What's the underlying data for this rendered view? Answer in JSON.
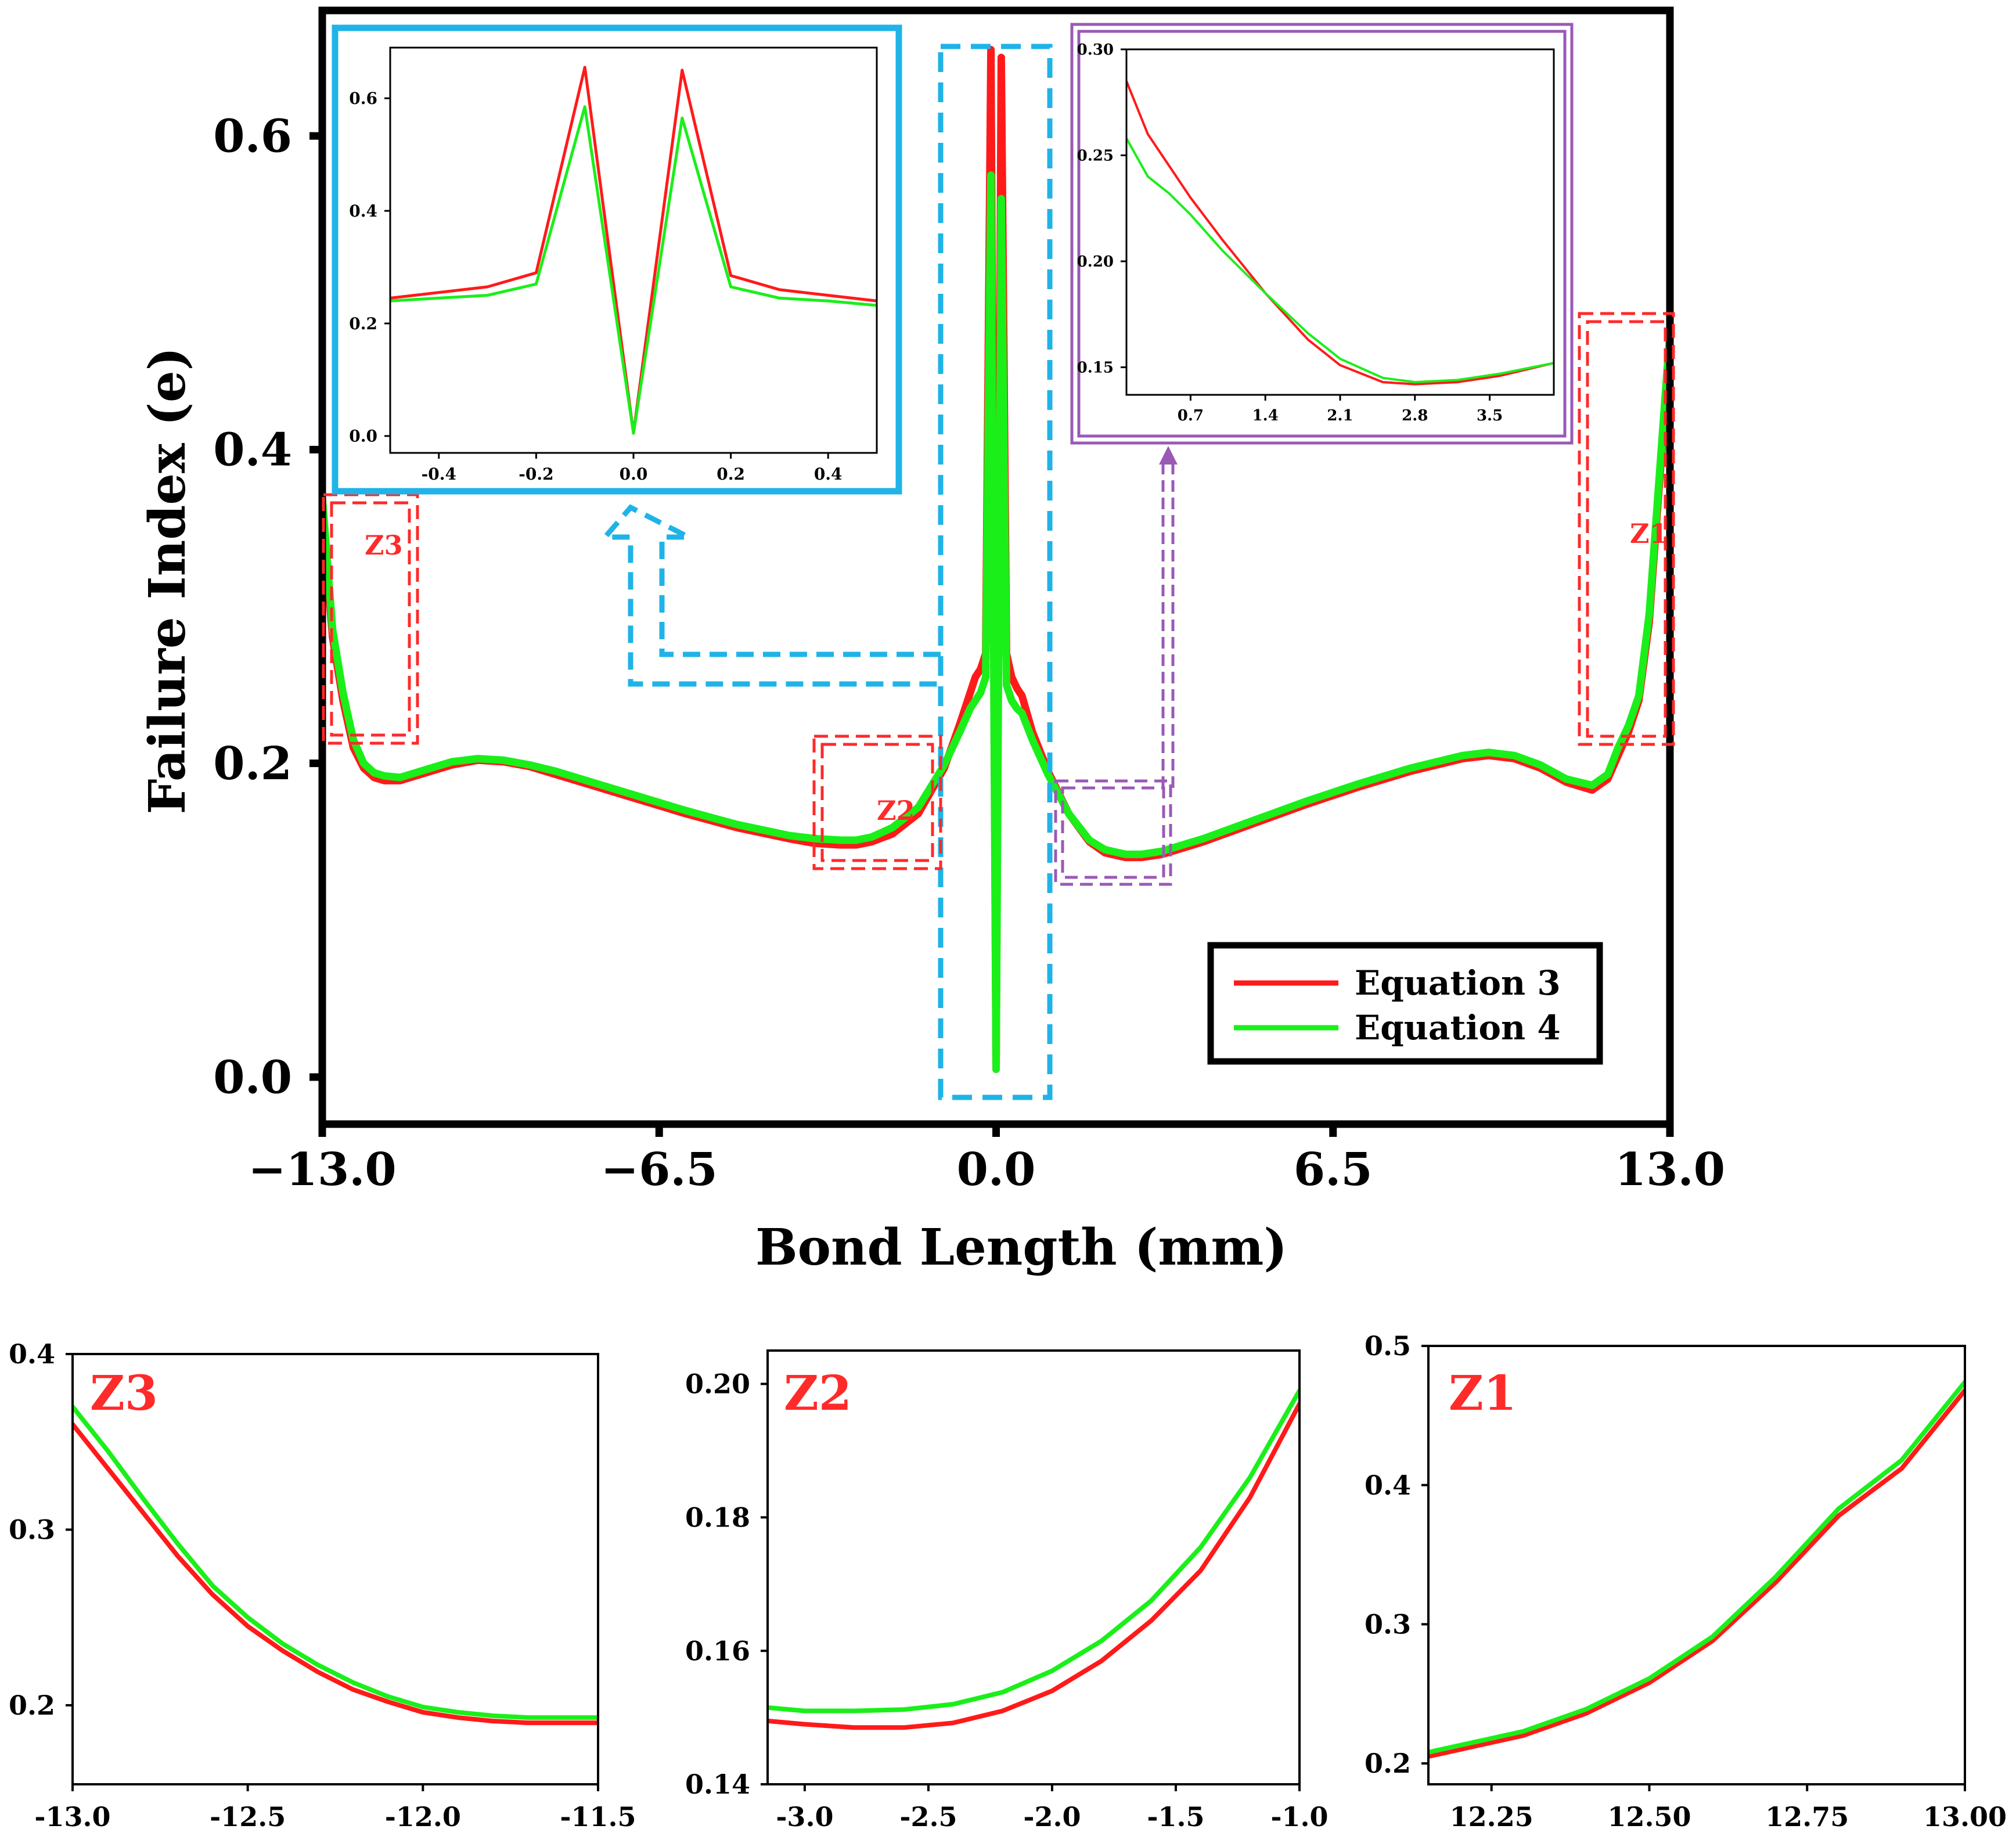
{
  "colors": {
    "equation3": "#ff1a1a",
    "equation4": "#1aef1a",
    "zoom_blue": "#1fb3e8",
    "zoom_purple": "#9b59b6",
    "zone_red": "#ff2a2a",
    "axis": "#000000"
  },
  "chart_data": [
    {
      "id": "main",
      "type": "line",
      "xlabel": "Bond Length (mm)",
      "ylabel": "Failure Index (e)",
      "xlim": [
        -13,
        13
      ],
      "ylim": [
        -0.03,
        0.68
      ],
      "xticks": [
        -13.0,
        -6.5,
        0.0,
        6.5,
        13.0
      ],
      "xtick_labels": [
        "−13.0",
        "−6.5",
        "0.0",
        "6.5",
        "13.0"
      ],
      "yticks": [
        0.0,
        0.2,
        0.4,
        0.6
      ],
      "ytick_labels": [
        "0.0",
        "0.2",
        "0.4",
        "0.6"
      ],
      "legend": {
        "placement": "bottom-right",
        "entries": [
          "Equation 3",
          "Equation 4"
        ]
      },
      "zone_labels": [
        "Z1",
        "Z2",
        "Z3"
      ],
      "series": [
        {
          "name": "Equation 3",
          "x": [
            -13.0,
            -12.8,
            -12.6,
            -12.4,
            -12.2,
            -12.0,
            -11.8,
            -11.5,
            -11.0,
            -10.5,
            -10.0,
            -9.5,
            -9.0,
            -8.5,
            -8.0,
            -7.0,
            -6.0,
            -5.0,
            -4.0,
            -3.5,
            -3.0,
            -2.7,
            -2.4,
            -2.0,
            -1.5,
            -1.0,
            -0.7,
            -0.5,
            -0.4,
            -0.3,
            -0.2,
            -0.1,
            0.0,
            0.1,
            0.2,
            0.3,
            0.4,
            0.5,
            0.7,
            1.0,
            1.4,
            1.8,
            2.1,
            2.5,
            2.8,
            3.2,
            3.6,
            4.0,
            5.0,
            6.0,
            7.0,
            8.0,
            9.0,
            9.5,
            10.0,
            10.5,
            11.0,
            11.5,
            11.8,
            12.0,
            12.2,
            12.4,
            12.6,
            12.8,
            13.0
          ],
          "y": [
            0.36,
            0.28,
            0.24,
            0.21,
            0.197,
            0.191,
            0.189,
            0.189,
            0.194,
            0.199,
            0.202,
            0.201,
            0.198,
            0.193,
            0.188,
            0.178,
            0.168,
            0.159,
            0.152,
            0.149,
            0.148,
            0.148,
            0.15,
            0.155,
            0.168,
            0.197,
            0.225,
            0.245,
            0.255,
            0.26,
            0.27,
            0.655,
            0.005,
            0.65,
            0.27,
            0.255,
            0.248,
            0.243,
            0.22,
            0.195,
            0.168,
            0.15,
            0.143,
            0.14,
            0.14,
            0.142,
            0.146,
            0.15,
            0.162,
            0.174,
            0.185,
            0.195,
            0.203,
            0.205,
            0.203,
            0.197,
            0.188,
            0.183,
            0.19,
            0.205,
            0.22,
            0.24,
            0.29,
            0.38,
            0.465
          ]
        },
        {
          "name": "Equation 4",
          "x": [
            -13.0,
            -12.8,
            -12.6,
            -12.4,
            -12.2,
            -12.0,
            -11.8,
            -11.5,
            -11.0,
            -10.5,
            -10.0,
            -9.5,
            -9.0,
            -8.5,
            -8.0,
            -7.0,
            -6.0,
            -5.0,
            -4.0,
            -3.5,
            -3.0,
            -2.7,
            -2.4,
            -2.0,
            -1.5,
            -1.0,
            -0.7,
            -0.5,
            -0.4,
            -0.3,
            -0.2,
            -0.1,
            0.0,
            0.1,
            0.2,
            0.3,
            0.4,
            0.5,
            0.7,
            1.0,
            1.4,
            1.8,
            2.1,
            2.5,
            2.8,
            3.2,
            3.6,
            4.0,
            5.0,
            6.0,
            7.0,
            8.0,
            9.0,
            9.5,
            10.0,
            10.5,
            11.0,
            11.5,
            11.8,
            12.0,
            12.2,
            12.4,
            12.6,
            12.8,
            13.0
          ],
          "y": [
            0.37,
            0.285,
            0.245,
            0.215,
            0.2,
            0.194,
            0.192,
            0.191,
            0.196,
            0.201,
            0.203,
            0.202,
            0.199,
            0.195,
            0.19,
            0.18,
            0.17,
            0.161,
            0.154,
            0.152,
            0.151,
            0.151,
            0.153,
            0.159,
            0.172,
            0.199,
            0.22,
            0.235,
            0.24,
            0.245,
            0.255,
            0.575,
            0.005,
            0.56,
            0.25,
            0.24,
            0.235,
            0.232,
            0.215,
            0.193,
            0.168,
            0.151,
            0.145,
            0.142,
            0.142,
            0.144,
            0.148,
            0.152,
            0.164,
            0.176,
            0.187,
            0.197,
            0.205,
            0.207,
            0.205,
            0.199,
            0.19,
            0.186,
            0.193,
            0.21,
            0.224,
            0.243,
            0.295,
            0.385,
            0.475
          ]
        }
      ]
    },
    {
      "id": "inset-center",
      "type": "line",
      "xlim": [
        -0.5,
        0.5
      ],
      "ylim": [
        -0.03,
        0.69
      ],
      "xticks": [
        -0.4,
        -0.2,
        0.0,
        0.2,
        0.4
      ],
      "xtick_labels": [
        "-0.4",
        "-0.2",
        "0.0",
        "0.2",
        "0.4"
      ],
      "yticks": [
        0.0,
        0.2,
        0.4,
        0.6
      ],
      "ytick_labels": [
        "0.0",
        "0.2",
        "0.4",
        "0.6"
      ],
      "series": [
        {
          "name": "Equation 3",
          "x": [
            -0.5,
            -0.4,
            -0.3,
            -0.2,
            -0.1,
            0.0,
            0.1,
            0.2,
            0.3,
            0.4,
            0.5
          ],
          "y": [
            0.245,
            0.255,
            0.265,
            0.29,
            0.655,
            0.005,
            0.65,
            0.285,
            0.26,
            0.25,
            0.24
          ]
        },
        {
          "name": "Equation 4",
          "x": [
            -0.5,
            -0.4,
            -0.3,
            -0.2,
            -0.1,
            0.0,
            0.1,
            0.2,
            0.3,
            0.4,
            0.5
          ],
          "y": [
            0.24,
            0.245,
            0.25,
            0.27,
            0.585,
            0.005,
            0.565,
            0.265,
            0.245,
            0.24,
            0.232
          ]
        }
      ]
    },
    {
      "id": "inset-right",
      "type": "line",
      "xlim": [
        0.1,
        4.1
      ],
      "ylim": [
        0.137,
        0.3
      ],
      "xticks": [
        0.7,
        1.4,
        2.1,
        2.8,
        3.5
      ],
      "xtick_labels": [
        "0.7",
        "1.4",
        "2.1",
        "2.8",
        "3.5"
      ],
      "yticks": [
        0.15,
        0.2,
        0.25,
        0.3
      ],
      "ytick_labels": [
        "0.15",
        "0.20",
        "0.25",
        "0.30"
      ],
      "series": [
        {
          "name": "Equation 3",
          "x": [
            0.1,
            0.3,
            0.5,
            0.7,
            1.0,
            1.4,
            1.8,
            2.1,
            2.5,
            2.8,
            3.2,
            3.6,
            4.1
          ],
          "y": [
            0.285,
            0.26,
            0.245,
            0.23,
            0.21,
            0.185,
            0.163,
            0.151,
            0.143,
            0.142,
            0.143,
            0.146,
            0.152
          ]
        },
        {
          "name": "Equation 4",
          "x": [
            0.1,
            0.3,
            0.5,
            0.7,
            1.0,
            1.4,
            1.8,
            2.1,
            2.5,
            2.8,
            3.2,
            3.6,
            4.1
          ],
          "y": [
            0.258,
            0.24,
            0.232,
            0.222,
            0.205,
            0.185,
            0.166,
            0.154,
            0.145,
            0.143,
            0.144,
            0.147,
            0.152
          ]
        }
      ]
    },
    {
      "id": "z3",
      "type": "line",
      "label": "Z3",
      "xlim": [
        -13.0,
        -11.5
      ],
      "ylim": [
        0.155,
        0.4
      ],
      "xticks": [
        -13.0,
        -12.5,
        -12.0,
        -11.5
      ],
      "xtick_labels": [
        "-13.0",
        "-12.5",
        "-12.0",
        "-11.5"
      ],
      "yticks": [
        0.2,
        0.3,
        0.4
      ],
      "ytick_labels": [
        "0.2",
        "0.3",
        "0.4"
      ],
      "series": [
        {
          "name": "Equation 3",
          "x": [
            -13.0,
            -12.9,
            -12.8,
            -12.7,
            -12.6,
            -12.5,
            -12.4,
            -12.3,
            -12.2,
            -12.1,
            -12.0,
            -11.9,
            -11.8,
            -11.7,
            -11.6,
            -11.5
          ],
          "y": [
            0.36,
            0.335,
            0.31,
            0.285,
            0.263,
            0.245,
            0.231,
            0.219,
            0.209,
            0.202,
            0.196,
            0.193,
            0.191,
            0.19,
            0.19,
            0.19
          ]
        },
        {
          "name": "Equation 4",
          "x": [
            -13.0,
            -12.9,
            -12.8,
            -12.7,
            -12.6,
            -12.5,
            -12.4,
            -12.3,
            -12.2,
            -12.1,
            -12.0,
            -11.9,
            -11.8,
            -11.7,
            -11.6,
            -11.5
          ],
          "y": [
            0.37,
            0.345,
            0.318,
            0.292,
            0.268,
            0.25,
            0.235,
            0.223,
            0.213,
            0.205,
            0.199,
            0.196,
            0.194,
            0.193,
            0.193,
            0.193
          ]
        }
      ]
    },
    {
      "id": "z2",
      "type": "line",
      "label": "Z2",
      "xlim": [
        -3.15,
        -1.0
      ],
      "ylim": [
        0.14,
        0.205
      ],
      "xticks": [
        -3.0,
        -2.5,
        -2.0,
        -1.5,
        -1.0
      ],
      "xtick_labels": [
        "-3.0",
        "-2.5",
        "-2.0",
        "-1.5",
        "-1.0"
      ],
      "yticks": [
        0.14,
        0.16,
        0.18,
        0.2
      ],
      "ytick_labels": [
        "0.14",
        "0.16",
        "0.18",
        "0.20"
      ],
      "series": [
        {
          "name": "Equation 3",
          "x": [
            -3.15,
            -3.0,
            -2.8,
            -2.6,
            -2.4,
            -2.2,
            -2.0,
            -1.8,
            -1.6,
            -1.4,
            -1.2,
            -1.0
          ],
          "y": [
            0.1495,
            0.149,
            0.1485,
            0.1485,
            0.1492,
            0.151,
            0.154,
            0.1585,
            0.1645,
            0.172,
            0.183,
            0.197
          ]
        },
        {
          "name": "Equation 4",
          "x": [
            -3.15,
            -3.0,
            -2.8,
            -2.6,
            -2.4,
            -2.2,
            -2.0,
            -1.8,
            -1.6,
            -1.4,
            -1.2,
            -1.0
          ],
          "y": [
            0.1515,
            0.151,
            0.151,
            0.1512,
            0.152,
            0.1538,
            0.157,
            0.1615,
            0.1675,
            0.1755,
            0.186,
            0.199
          ]
        }
      ]
    },
    {
      "id": "z1",
      "type": "line",
      "label": "Z1",
      "xlim": [
        12.15,
        13.0
      ],
      "ylim": [
        0.185,
        0.5
      ],
      "xticks": [
        12.25,
        12.5,
        12.75,
        13.0
      ],
      "xtick_labels": [
        "12.25",
        "12.50",
        "12.75",
        "13.00"
      ],
      "yticks": [
        0.2,
        0.3,
        0.4,
        0.5
      ],
      "ytick_labels": [
        "0.2",
        "0.3",
        "0.4",
        "0.5"
      ],
      "series": [
        {
          "name": "Equation 3",
          "x": [
            12.15,
            12.3,
            12.4,
            12.5,
            12.6,
            12.7,
            12.8,
            12.9,
            13.0
          ],
          "y": [
            0.205,
            0.22,
            0.236,
            0.258,
            0.288,
            0.33,
            0.378,
            0.412,
            0.468
          ]
        },
        {
          "name": "Equation 4",
          "x": [
            12.15,
            12.3,
            12.4,
            12.5,
            12.6,
            12.7,
            12.8,
            12.9,
            13.0
          ],
          "y": [
            0.208,
            0.223,
            0.239,
            0.261,
            0.291,
            0.334,
            0.383,
            0.418,
            0.474
          ]
        }
      ]
    }
  ]
}
